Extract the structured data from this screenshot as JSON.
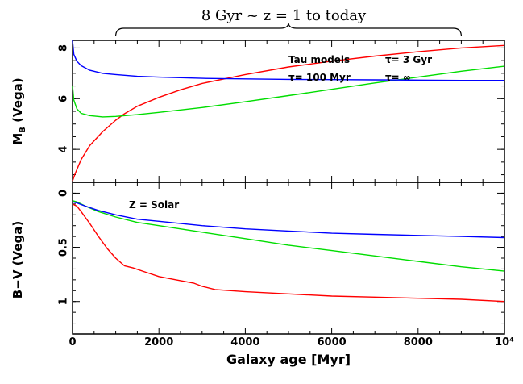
{
  "figure": {
    "banner_label": "8 Gyr ~ z = 1 to today",
    "banner_span_myr": [
      1000,
      9000
    ],
    "xlabel": "Galaxy age [Myr]",
    "xlim": [
      0,
      10000
    ],
    "x_ticks": [
      {
        "value": 0,
        "label": "0"
      },
      {
        "value": 2000,
        "label": "2000"
      },
      {
        "value": 4000,
        "label": "4000"
      },
      {
        "value": 6000,
        "label": "6000"
      },
      {
        "value": 8000,
        "label": "8000"
      },
      {
        "value": 10000,
        "label": "10⁴"
      }
    ]
  },
  "legend": {
    "title": "Tau models",
    "entries": [
      {
        "name": "τ= 100 Myr",
        "color": "#ff0000"
      },
      {
        "name": "τ= 3 Gyr",
        "color": "#00dd00"
      },
      {
        "name": "τ= ∞",
        "color": "#0000ff"
      }
    ]
  },
  "chart_data": [
    {
      "type": "line",
      "title": "",
      "xlabel": "Galaxy age [Myr]",
      "ylabel": "M_B (Vega)",
      "ylabel_main": "M",
      "ylabel_sub": "B",
      "ylabel_suffix": " (Vega)",
      "xlim": [
        0,
        10000
      ],
      "ylim": [
        8.3,
        2.7
      ],
      "y_inverted": true,
      "y_ticks": [
        {
          "value": 4,
          "label": "4"
        },
        {
          "value": 6,
          "label": "6"
        },
        {
          "value": 8,
          "label": "8"
        }
      ],
      "series": [
        {
          "name": "τ= 100 Myr",
          "color": "#ff0000",
          "x": [
            0,
            50,
            200,
            400,
            700,
            1000,
            1200,
            1500,
            2000,
            2500,
            3000,
            4000,
            5000,
            6000,
            7000,
            8000,
            9000,
            10000
          ],
          "y": [
            2.75,
            3.0,
            3.6,
            4.15,
            4.7,
            5.15,
            5.4,
            5.7,
            6.05,
            6.35,
            6.6,
            6.95,
            7.25,
            7.48,
            7.68,
            7.85,
            8.0,
            8.1
          ]
        },
        {
          "name": "τ= 3 Gyr",
          "color": "#00dd00",
          "x": [
            0,
            30,
            100,
            200,
            400,
            700,
            1000,
            1500,
            2000,
            3000,
            4000,
            5000,
            6000,
            7000,
            8000,
            9000,
            10000
          ],
          "y": [
            6.5,
            5.95,
            5.6,
            5.42,
            5.33,
            5.28,
            5.3,
            5.37,
            5.46,
            5.65,
            5.88,
            6.12,
            6.37,
            6.62,
            6.85,
            7.08,
            7.28
          ]
        },
        {
          "name": "τ= ∞",
          "color": "#0000ff",
          "x": [
            0,
            30,
            100,
            200,
            400,
            700,
            1000,
            1500,
            2000,
            3000,
            4000,
            5000,
            6000,
            7000,
            8000,
            9000,
            10000
          ],
          "y": [
            8.3,
            7.75,
            7.48,
            7.3,
            7.12,
            7.0,
            6.95,
            6.88,
            6.85,
            6.8,
            6.78,
            6.76,
            6.75,
            6.74,
            6.73,
            6.72,
            6.72
          ]
        }
      ]
    },
    {
      "type": "line",
      "title": "",
      "annotation": "Z = Solar",
      "xlabel": "Galaxy age [Myr]",
      "ylabel": "B−V (Vega)",
      "xlim": [
        0,
        10000
      ],
      "ylim": [
        -0.1,
        1.3
      ],
      "y_ticks": [
        {
          "value": 0,
          "label": "0"
        },
        {
          "value": 0.5,
          "label": "0.5"
        },
        {
          "value": 1,
          "label": "1"
        }
      ],
      "series": [
        {
          "name": "τ= 100 Myr",
          "color": "#ff0000",
          "x": [
            0,
            100,
            200,
            400,
            600,
            800,
            1000,
            1200,
            1400,
            1700,
            2000,
            2400,
            2800,
            3000,
            3300,
            4000,
            5000,
            6000,
            7000,
            8000,
            9000,
            10000
          ],
          "y": [
            0.1,
            0.12,
            0.17,
            0.28,
            0.4,
            0.51,
            0.6,
            0.67,
            0.69,
            0.73,
            0.77,
            0.8,
            0.83,
            0.86,
            0.89,
            0.91,
            0.93,
            0.95,
            0.96,
            0.97,
            0.98,
            1.0
          ]
        },
        {
          "name": "τ= 3 Gyr",
          "color": "#00dd00",
          "x": [
            0,
            100,
            300,
            600,
            1000,
            1500,
            2000,
            3000,
            4000,
            5000,
            6000,
            7000,
            8000,
            9000,
            10000
          ],
          "y": [
            0.07,
            0.08,
            0.12,
            0.17,
            0.22,
            0.27,
            0.3,
            0.36,
            0.42,
            0.48,
            0.53,
            0.58,
            0.63,
            0.68,
            0.72
          ]
        },
        {
          "name": "τ= ∞",
          "color": "#0000ff",
          "x": [
            0,
            100,
            300,
            600,
            1000,
            1500,
            2000,
            3000,
            4000,
            5000,
            6000,
            7000,
            8000,
            9000,
            10000
          ],
          "y": [
            0.08,
            0.09,
            0.12,
            0.16,
            0.2,
            0.24,
            0.26,
            0.3,
            0.33,
            0.35,
            0.37,
            0.38,
            0.39,
            0.4,
            0.41
          ]
        }
      ]
    }
  ]
}
